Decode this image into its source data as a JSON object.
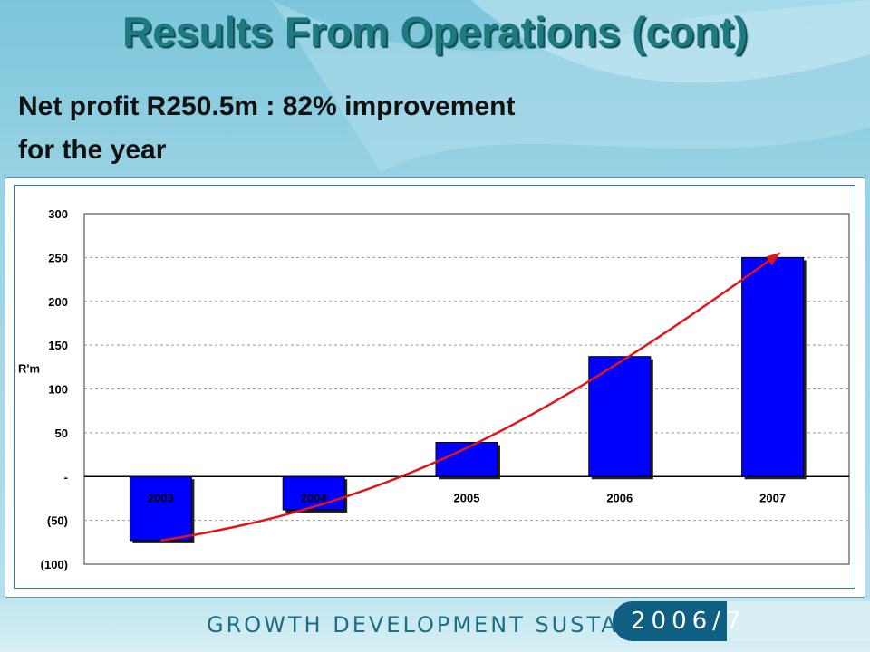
{
  "slide": {
    "title": "Results From Operations (cont)",
    "subtitle_line1": "Net profit R250.5m : 82% improvement",
    "subtitle_line2": "for the year",
    "footer_text": "GROWTH DEVELOPMENT SUSTAINABILITY",
    "footer_year": "2006/7"
  },
  "colors": {
    "bar": "#0000ff",
    "trend": "#e0151b",
    "title": "#1f7a80",
    "footer_badge": "#0e5f82"
  },
  "chart_data": {
    "type": "bar",
    "categories": [
      "2003",
      "2004",
      "2005",
      "2006",
      "2007"
    ],
    "values": [
      -73,
      -38,
      39,
      137,
      250
    ],
    "ylabel": "R'm",
    "ylim": [
      -100,
      300
    ],
    "yticks": [
      300,
      250,
      200,
      150,
      100,
      50,
      0,
      -50,
      -100
    ],
    "ytick_labels": [
      "300",
      "250",
      "200",
      "150",
      "100",
      "50",
      "-",
      "(50)",
      "(100)"
    ],
    "grid": true,
    "trend_arrow": true
  }
}
